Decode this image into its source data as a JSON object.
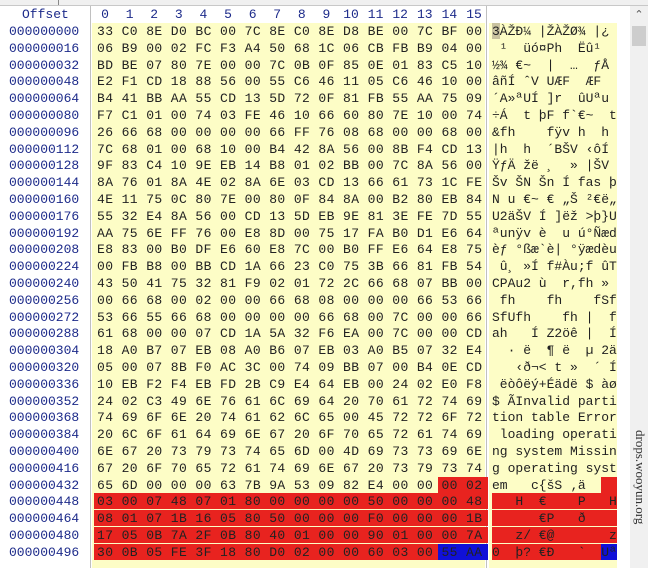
{
  "header": {
    "offset_label": "Offset",
    "columns": [
      "0",
      "1",
      "2",
      "3",
      "4",
      "5",
      "6",
      "7",
      "8",
      "9",
      "10",
      "11",
      "12",
      "13",
      "14",
      "15"
    ]
  },
  "colors": {
    "data_bg": "#fdfdc6",
    "partition_highlight": "#e8231f",
    "signature_highlight": "#1010d8",
    "offset_text": "#1c2a8a"
  },
  "highlights": {
    "partition_table_bytes": [
      446,
      509
    ],
    "boot_signature_bytes": [
      510,
      511
    ],
    "cursor_byte": 0
  },
  "rows": [
    {
      "offset": "000000000",
      "hex": "33 C0 8E D0 BC 00 7C 8E C0 8E D8 BE 00 7C BF 00"
    },
    {
      "offset": "000000016",
      "hex": "06 B9 00 02 FC F3 A4 50 68 1C 06 CB FB B9 04 00"
    },
    {
      "offset": "000000032",
      "hex": "BD BE 07 80 7E 00 00 7C 0B 0F 85 0E 01 83 C5 10"
    },
    {
      "offset": "000000048",
      "hex": "E2 F1 CD 18 88 56 00 55 C6 46 11 05 C6 46 10 00"
    },
    {
      "offset": "000000064",
      "hex": "B4 41 BB AA 55 CD 13 5D 72 0F 81 FB 55 AA 75 09"
    },
    {
      "offset": "000000080",
      "hex": "F7 C1 01 00 74 03 FE 46 10 66 60 80 7E 10 00 74"
    },
    {
      "offset": "000000096",
      "hex": "26 66 68 00 00 00 00 66 FF 76 08 68 00 00 68 00"
    },
    {
      "offset": "000000112",
      "hex": "7C 68 01 00 68 10 00 B4 42 8A 56 00 8B F4 CD 13"
    },
    {
      "offset": "000000128",
      "hex": "9F 83 C4 10 9E EB 14 B8 01 02 BB 00 7C 8A 56 00"
    },
    {
      "offset": "000000144",
      "hex": "8A 76 01 8A 4E 02 8A 6E 03 CD 13 66 61 73 1C FE"
    },
    {
      "offset": "000000160",
      "hex": "4E 11 75 0C 80 7E 00 80 0F 84 8A 00 B2 80 EB 84"
    },
    {
      "offset": "000000176",
      "hex": "55 32 E4 8A 56 00 CD 13 5D EB 9E 81 3E FE 7D 55"
    },
    {
      "offset": "000000192",
      "hex": "AA 75 6E FF 76 00 E8 8D 00 75 17 FA B0 D1 E6 64"
    },
    {
      "offset": "000000208",
      "hex": "E8 83 00 B0 DF E6 60 E8 7C 00 B0 FF E6 64 E8 75"
    },
    {
      "offset": "000000224",
      "hex": "00 FB B8 00 BB CD 1A 66 23 C0 75 3B 66 81 FB 54"
    },
    {
      "offset": "000000240",
      "hex": "43 50 41 75 32 81 F9 02 01 72 2C 66 68 07 BB 00"
    },
    {
      "offset": "000000256",
      "hex": "00 66 68 00 02 00 00 66 68 08 00 00 00 66 53 66"
    },
    {
      "offset": "000000272",
      "hex": "53 66 55 66 68 00 00 00 00 66 68 00 7C 00 00 66"
    },
    {
      "offset": "000000288",
      "hex": "61 68 00 00 07 CD 1A 5A 32 F6 EA 00 7C 00 00 CD"
    },
    {
      "offset": "000000304",
      "hex": "18 A0 B7 07 EB 08 A0 B6 07 EB 03 A0 B5 07 32 E4"
    },
    {
      "offset": "000000320",
      "hex": "05 00 07 8B F0 AC 3C 00 74 09 BB 07 00 B4 0E CD"
    },
    {
      "offset": "000000336",
      "hex": "10 EB F2 F4 EB FD 2B C9 E4 64 EB 00 24 02 E0 F8"
    },
    {
      "offset": "000000352",
      "hex": "24 02 C3 49 6E 76 61 6C 69 64 20 70 61 72 74 69"
    },
    {
      "offset": "000000368",
      "hex": "74 69 6F 6E 20 74 61 62 6C 65 00 45 72 72 6F 72"
    },
    {
      "offset": "000000384",
      "hex": "20 6C 6F 61 64 69 6E 67 20 6F 70 65 72 61 74 69"
    },
    {
      "offset": "000000400",
      "hex": "6E 67 20 73 79 73 74 65 6D 00 4D 69 73 73 69 6E"
    },
    {
      "offset": "000000416",
      "hex": "67 20 6F 70 65 72 61 74 69 6E 67 20 73 79 73 74"
    },
    {
      "offset": "000000432",
      "hex": "65 6D 00 00 00 63 7B 9A 53 09 82 E4 00 00 00 02"
    },
    {
      "offset": "000000448",
      "hex": "03 00 07 48 07 01 80 00 00 00 00 50 00 00 00 48"
    },
    {
      "offset": "000000464",
      "hex": "08 01 07 1B 16 05 80 50 00 00 00 F0 00 00 00 1B"
    },
    {
      "offset": "000000480",
      "hex": "17 05 0B 7A 2F 0B 80 40 01 00 00 90 01 00 00 7A"
    },
    {
      "offset": "000000496",
      "hex": "30 0B 05 FE 3F 18 80 D0 02 00 00 60 03 00 55 AA"
    }
  ],
  "scrollbar": {
    "up_icon": "chevron-up-icon",
    "position": 0
  },
  "watermark": "drops.wooyun.org"
}
